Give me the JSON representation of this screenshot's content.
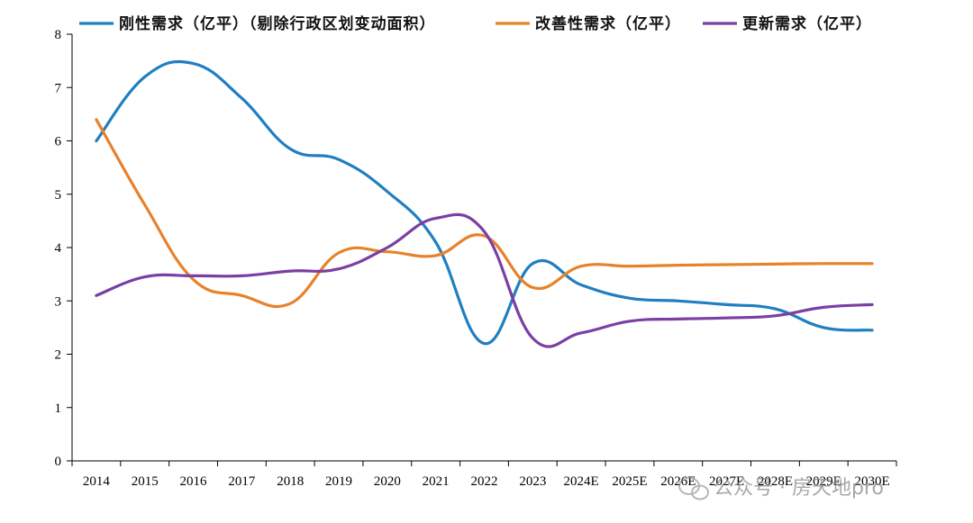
{
  "chart_data": {
    "type": "line",
    "categories": [
      "2014",
      "2015",
      "2016",
      "2017",
      "2018",
      "2019",
      "2020",
      "2021",
      "2022",
      "2023",
      "2024E",
      "2025E",
      "2026E",
      "2027E",
      "2028E",
      "2029E",
      "2030E"
    ],
    "ylim": [
      0,
      8
    ],
    "yticks": [
      "0",
      "1",
      "2",
      "3",
      "4",
      "5",
      "6",
      "7",
      "8"
    ],
    "series": [
      {
        "name": "刚性需求（亿平）（剔除行政区划变动面积）",
        "color": "#1f7fc1",
        "values": [
          6.0,
          7.2,
          7.45,
          6.8,
          5.85,
          5.65,
          5.05,
          4.1,
          2.2,
          3.7,
          3.3,
          3.05,
          3.0,
          2.93,
          2.85,
          2.5,
          2.45
        ]
      },
      {
        "name": "改善性需求（亿平）",
        "color": "#e8822a",
        "values": [
          6.4,
          4.8,
          3.4,
          3.1,
          2.95,
          3.9,
          3.92,
          3.85,
          4.22,
          3.25,
          3.65,
          3.65,
          3.67,
          3.68,
          3.69,
          3.7,
          3.7
        ]
      },
      {
        "name": "更新需求（亿平）",
        "color": "#7a3fa4",
        "values": [
          3.1,
          3.45,
          3.47,
          3.47,
          3.56,
          3.6,
          4.0,
          4.55,
          4.3,
          2.3,
          2.4,
          2.62,
          2.66,
          2.68,
          2.72,
          2.88,
          2.93
        ]
      }
    ],
    "legend_position": "top",
    "grid": false
  },
  "watermark": {
    "icon": "wechat-icon",
    "text": "公众号 · 房天地pro"
  }
}
